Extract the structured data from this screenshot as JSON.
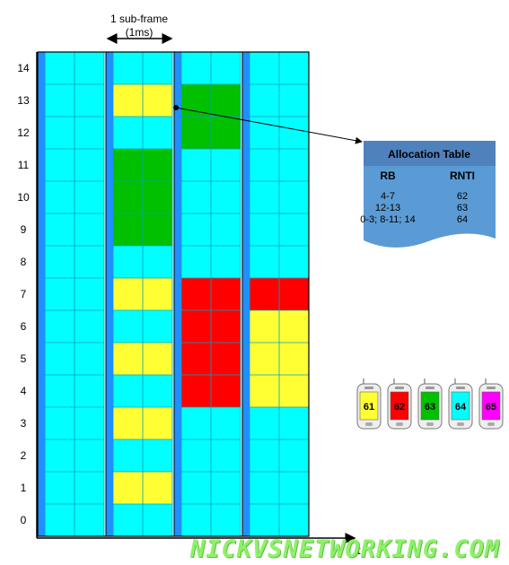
{
  "colors": {
    "background": "#00ffff",
    "separator": "#1e90ff",
    "yellow": "#ffff33",
    "green": "#00c000",
    "red": "#ff0000",
    "magenta": "#ff00ff",
    "table_header": "#4f81bd",
    "table_body": "#5b9bd5"
  },
  "subframe_label": {
    "line1": "1 sub-frame",
    "line2": "(1ms)"
  },
  "time_axis_label": "t",
  "rb_labels": [
    "14",
    "13",
    "12",
    "11",
    "10",
    "9",
    "8",
    "7",
    "6",
    "5",
    "4",
    "3",
    "2",
    "1",
    "0"
  ],
  "allocations": [
    {
      "subframe": 1,
      "rb": 13,
      "ue": "61"
    },
    {
      "subframe": 1,
      "rb": 11,
      "ue": "63"
    },
    {
      "subframe": 1,
      "rb": 10,
      "ue": "63"
    },
    {
      "subframe": 1,
      "rb": 9,
      "ue": "63"
    },
    {
      "subframe": 1,
      "rb": 7,
      "ue": "61"
    },
    {
      "subframe": 1,
      "rb": 5,
      "ue": "61"
    },
    {
      "subframe": 1,
      "rb": 3,
      "ue": "61"
    },
    {
      "subframe": 1,
      "rb": 1,
      "ue": "61"
    },
    {
      "subframe": 2,
      "rb": 13,
      "ue": "63"
    },
    {
      "subframe": 2,
      "rb": 12,
      "ue": "63"
    },
    {
      "subframe": 2,
      "rb": 7,
      "ue": "62"
    },
    {
      "subframe": 2,
      "rb": 6,
      "ue": "62"
    },
    {
      "subframe": 2,
      "rb": 5,
      "ue": "62"
    },
    {
      "subframe": 2,
      "rb": 4,
      "ue": "62"
    },
    {
      "subframe": 3,
      "rb": 7,
      "ue": "62"
    },
    {
      "subframe": 3,
      "rb": 6,
      "ue": "61"
    },
    {
      "subframe": 3,
      "rb": 5,
      "ue": "61"
    },
    {
      "subframe": 3,
      "rb": 4,
      "ue": "61"
    }
  ],
  "allocation_table": {
    "title": "Allocation Table",
    "headers": [
      "RB",
      "RNTI"
    ],
    "rows": [
      [
        "4-7",
        "62"
      ],
      [
        "12-13",
        "63"
      ],
      [
        "0-3; 8-11; 14",
        "64"
      ]
    ]
  },
  "phones": [
    {
      "label": "61",
      "color": "#ffff33"
    },
    {
      "label": "62",
      "color": "#ff0000"
    },
    {
      "label": "63",
      "color": "#00c000"
    },
    {
      "label": "64",
      "color": "#00ffff"
    },
    {
      "label": "65",
      "color": "#ff00ff"
    }
  ],
  "watermark": "NICKVSNETWORKING.COM"
}
